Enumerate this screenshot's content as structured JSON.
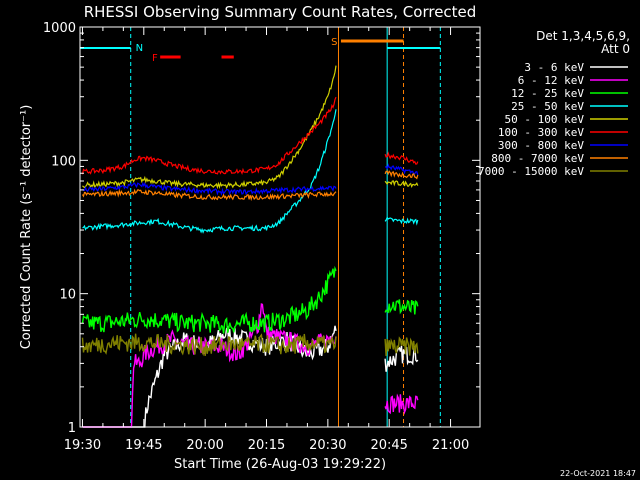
{
  "chart_data": {
    "type": "line",
    "title": "RHESSI Observing Summary Count Rates, Corrected",
    "xlabel": "Start Time (26-Aug-03 19:29:22)",
    "ylabel": "Corrected Count Rate (s⁻¹ detector⁻¹)",
    "y_scale": "log",
    "ylim": [
      1,
      1000
    ],
    "xlim_minutes": [
      0,
      84
    ],
    "x_ticks": [
      {
        "label": "19:30",
        "min": 0
      },
      {
        "label": "19:45",
        "min": 15
      },
      {
        "label": "20:00",
        "min": 30
      },
      {
        "label": "20:15",
        "min": 45
      },
      {
        "label": "20:30",
        "min": 60
      },
      {
        "label": "20:45",
        "min": 75
      },
      {
        "label": "21:00",
        "min": 90
      }
    ],
    "y_ticks": [
      {
        "label": "1",
        "value": 1
      },
      {
        "label": "10",
        "value": 10
      },
      {
        "label": "100",
        "value": 100
      },
      {
        "label": "1000",
        "value": 1000
      }
    ],
    "legend_title": "Det 1,3,4,5,6,9,",
    "legend_subtitle": "Att 0",
    "legend_position": "right",
    "timestamp": "22-Oct-2021 18:47",
    "flags": [
      {
        "label": "N",
        "color": "#00ffff"
      },
      {
        "label": "F",
        "color": "#ff0000"
      },
      {
        "label": "S",
        "color": "#ff8000"
      }
    ],
    "series": [
      {
        "name": "3 - 6 keV",
        "color": "#ffffff",
        "points": [
          [
            0,
            1.0
          ],
          [
            12,
            1.0
          ],
          [
            14,
            1.0
          ],
          [
            15,
            1.0
          ],
          [
            16,
            1.5
          ],
          [
            20,
            3.5
          ],
          [
            25,
            4.5
          ],
          [
            30,
            4.0
          ],
          [
            35,
            5.0
          ],
          [
            40,
            4.5
          ],
          [
            45,
            4.0
          ],
          [
            50,
            4.5
          ],
          [
            55,
            3.5
          ],
          [
            60,
            4.0
          ],
          [
            62,
            5.5
          ]
        ],
        "post": [
          [
            74,
            3.0
          ],
          [
            78,
            3.5
          ],
          [
            82,
            3.5
          ]
        ]
      },
      {
        "name": "6 - 12 keV",
        "color": "#ff00ff",
        "points": [
          [
            0,
            1.0
          ],
          [
            12,
            1.0
          ],
          [
            12.5,
            3.0
          ],
          [
            14,
            3.0
          ],
          [
            15,
            3.5
          ],
          [
            18,
            4.0
          ],
          [
            22,
            4.5
          ],
          [
            26,
            4.0
          ],
          [
            30,
            4.0
          ],
          [
            34,
            4.0
          ],
          [
            38,
            3.5
          ],
          [
            41,
            4.5
          ],
          [
            43,
            6.0
          ],
          [
            44,
            9.0
          ],
          [
            45,
            5.0
          ],
          [
            50,
            4.5
          ],
          [
            55,
            4.0
          ],
          [
            60,
            4.5
          ],
          [
            62,
            5.0
          ]
        ],
        "post": [
          [
            74,
            1.5
          ],
          [
            78,
            1.5
          ],
          [
            82,
            1.5
          ]
        ]
      },
      {
        "name": "12 - 25 keV",
        "color": "#00ff00",
        "points": [
          [
            0,
            6.0
          ],
          [
            5,
            6.0
          ],
          [
            10,
            6.2
          ],
          [
            15,
            6.5
          ],
          [
            20,
            6.3
          ],
          [
            25,
            6.0
          ],
          [
            30,
            6.0
          ],
          [
            35,
            5.8
          ],
          [
            40,
            6.0
          ],
          [
            45,
            6.0
          ],
          [
            50,
            6.5
          ],
          [
            55,
            7.5
          ],
          [
            58,
            9.5
          ],
          [
            60,
            12
          ],
          [
            62,
            15
          ]
        ],
        "post": [
          [
            74,
            8.5
          ],
          [
            78,
            8.0
          ],
          [
            82,
            7.5
          ]
        ]
      },
      {
        "name": "25 - 50 keV",
        "color": "#00ffff",
        "points": [
          [
            0,
            31
          ],
          [
            5,
            32
          ],
          [
            10,
            33
          ],
          [
            14,
            34
          ],
          [
            18,
            35
          ],
          [
            22,
            33
          ],
          [
            26,
            31
          ],
          [
            30,
            30
          ],
          [
            35,
            31
          ],
          [
            40,
            31
          ],
          [
            45,
            31
          ],
          [
            48,
            34
          ],
          [
            50,
            40
          ],
          [
            53,
            50
          ],
          [
            56,
            65
          ],
          [
            58,
            90
          ],
          [
            60,
            140
          ],
          [
            61.5,
            200
          ],
          [
            62,
            250
          ]
        ],
        "post": [
          [
            74,
            36
          ],
          [
            78,
            35
          ],
          [
            82,
            35
          ]
        ]
      },
      {
        "name": "50 - 100 keV",
        "color": "#d0d000",
        "points": [
          [
            0,
            65
          ],
          [
            5,
            66
          ],
          [
            10,
            68
          ],
          [
            14,
            72
          ],
          [
            18,
            70
          ],
          [
            22,
            67
          ],
          [
            26,
            66
          ],
          [
            30,
            65
          ],
          [
            35,
            65
          ],
          [
            40,
            66
          ],
          [
            45,
            68
          ],
          [
            48,
            75
          ],
          [
            50,
            90
          ],
          [
            53,
            120
          ],
          [
            56,
            170
          ],
          [
            58,
            220
          ],
          [
            60,
            300
          ],
          [
            61.5,
            420
          ],
          [
            62,
            520
          ]
        ],
        "post": [
          [
            74,
            68
          ],
          [
            78,
            67
          ],
          [
            82,
            66
          ]
        ]
      },
      {
        "name": "100 - 300 keV",
        "color": "#ff0000",
        "points": [
          [
            0,
            82
          ],
          [
            5,
            84
          ],
          [
            10,
            90
          ],
          [
            13,
            102
          ],
          [
            15,
            104
          ],
          [
            18,
            100
          ],
          [
            22,
            92
          ],
          [
            26,
            86
          ],
          [
            30,
            83
          ],
          [
            35,
            82
          ],
          [
            40,
            83
          ],
          [
            45,
            86
          ],
          [
            48,
            95
          ],
          [
            50,
            110
          ],
          [
            53,
            135
          ],
          [
            56,
            165
          ],
          [
            58,
            190
          ],
          [
            60,
            225
          ],
          [
            61.5,
            260
          ],
          [
            62,
            290
          ]
        ],
        "post": [
          [
            74,
            110
          ],
          [
            78,
            105
          ],
          [
            82,
            95
          ]
        ]
      },
      {
        "name": "300 - 800 keV",
        "color": "#0000ff",
        "points": [
          [
            0,
            60
          ],
          [
            5,
            61
          ],
          [
            10,
            63
          ],
          [
            14,
            66
          ],
          [
            18,
            63
          ],
          [
            22,
            61
          ],
          [
            26,
            60
          ],
          [
            30,
            59
          ],
          [
            35,
            58
          ],
          [
            40,
            58
          ],
          [
            45,
            59
          ],
          [
            50,
            60
          ],
          [
            55,
            61
          ],
          [
            60,
            62
          ],
          [
            62,
            62
          ]
        ],
        "post": [
          [
            74,
            90
          ],
          [
            78,
            85
          ],
          [
            82,
            80
          ]
        ]
      },
      {
        "name": "800 - 7000 keV",
        "color": "#ff8000",
        "points": [
          [
            0,
            55
          ],
          [
            5,
            56
          ],
          [
            10,
            57
          ],
          [
            14,
            58
          ],
          [
            18,
            57
          ],
          [
            22,
            55
          ],
          [
            26,
            54
          ],
          [
            30,
            53
          ],
          [
            35,
            53
          ],
          [
            40,
            53
          ],
          [
            45,
            53
          ],
          [
            50,
            54
          ],
          [
            55,
            55
          ],
          [
            60,
            56
          ],
          [
            62,
            56
          ]
        ],
        "post": [
          [
            74,
            80
          ],
          [
            78,
            78
          ],
          [
            82,
            76
          ]
        ]
      },
      {
        "name": "7000 - 15000 keV",
        "color": "#808000",
        "points": [
          [
            0,
            4.0
          ],
          [
            5,
            4.2
          ],
          [
            10,
            4.3
          ],
          [
            15,
            4.3
          ],
          [
            20,
            4.2
          ],
          [
            25,
            4.1
          ],
          [
            30,
            4.0
          ],
          [
            35,
            4.2
          ],
          [
            40,
            4.1
          ],
          [
            45,
            4.2
          ],
          [
            50,
            4.0
          ],
          [
            55,
            4.3
          ],
          [
            60,
            4.1
          ],
          [
            62,
            4.2
          ]
        ],
        "post": [
          [
            74,
            4.0
          ],
          [
            78,
            4.0
          ],
          [
            82,
            4.0
          ]
        ]
      }
    ]
  }
}
